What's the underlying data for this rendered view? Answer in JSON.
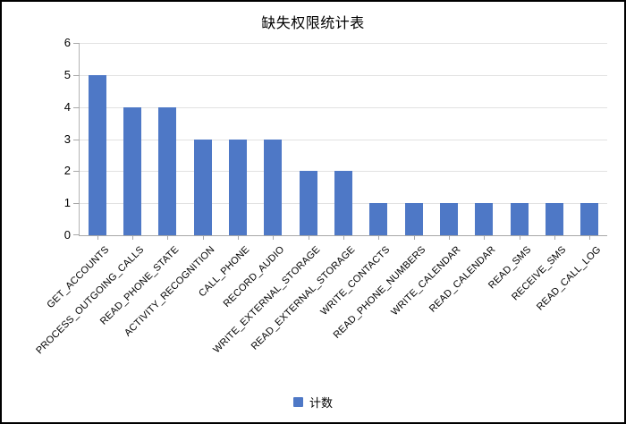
{
  "chart_data": {
    "type": "bar",
    "title": "缺失权限统计表",
    "categories": [
      "GET_ACCOUNTS",
      "PROCESS_OUTGOING_CALLS",
      "READ_PHONE_STATE",
      "ACTIVITY_RECOGNITION",
      "CALL_PHONE",
      "RECORD_AUDIO",
      "WRITE_EXTERNAL_STORAGE",
      "READ_EXTERNAL_STORAGE",
      "WRITE_CONTACTS",
      "READ_PHONE_NUMBERS",
      "WRITE_CALENDAR",
      "READ_CALENDAR",
      "READ_SMS",
      "RECEIVE_SMS",
      "READ_CALL_LOG"
    ],
    "values": [
      5,
      4,
      4,
      3,
      3,
      3,
      2,
      2,
      1,
      1,
      1,
      1,
      1,
      1,
      1
    ],
    "series_name": "计数",
    "xlabel": "",
    "ylabel": "",
    "ylim": [
      0,
      6
    ],
    "yticks": [
      0,
      1,
      2,
      3,
      4,
      5,
      6
    ],
    "grid": "horizontal",
    "legend_position": "bottom",
    "bar_color": "#4e78c6"
  }
}
